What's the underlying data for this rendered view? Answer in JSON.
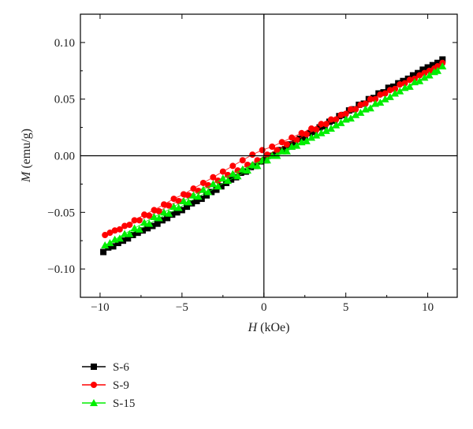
{
  "chart_data": {
    "type": "scatter",
    "title": "",
    "xlabel_var": "H",
    "xlabel_unit": " (kOe)",
    "ylabel_var": "M",
    "ylabel_unit": " (emu/g)",
    "xlim": [
      -11.2,
      11.8
    ],
    "ylim": [
      -0.125,
      0.125
    ],
    "x_ticks": [
      -10,
      -5,
      0,
      5,
      10
    ],
    "x_tick_labels": [
      "−10",
      "−5",
      "0",
      "5",
      "10"
    ],
    "y_ticks": [
      -0.1,
      -0.05,
      0.0,
      0.05,
      0.1
    ],
    "y_tick_labels": [
      "−0.10",
      "−0.05",
      "0.00",
      "0.05",
      "0.10"
    ],
    "grid": false,
    "zero_lines": true,
    "legend_position": "below-left",
    "series": [
      {
        "name": "S-6",
        "color": "#000000",
        "marker": "square",
        "x": [
          -9.8,
          -9.2,
          -8.6,
          -8.0,
          -7.4,
          -6.8,
          -6.2,
          -5.6,
          -5.0,
          -4.4,
          -3.8,
          -3.2,
          -2.6,
          -2.0,
          -1.4,
          -0.8,
          -0.2,
          0.4,
          1.0,
          1.6,
          2.2,
          2.8,
          3.4,
          4.0,
          4.6,
          5.2,
          5.8,
          6.4,
          7.0,
          7.6,
          8.2,
          8.8,
          9.4,
          10.0,
          10.6,
          10.9,
          10.3,
          9.7,
          9.1,
          8.5,
          7.9,
          7.3,
          6.7,
          6.1,
          5.5,
          4.9,
          4.3,
          3.7,
          3.1,
          2.5,
          1.9,
          1.3,
          0.7,
          0.1,
          -0.5,
          -1.1,
          -1.7,
          -2.3,
          -2.9,
          -3.5,
          -4.1,
          -4.7,
          -5.3,
          -5.9,
          -6.5,
          -7.1,
          -7.7,
          -8.3,
          -8.9,
          -9.5
        ],
        "y": [
          -0.085,
          -0.08,
          -0.075,
          -0.07,
          -0.066,
          -0.062,
          -0.057,
          -0.052,
          -0.048,
          -0.042,
          -0.038,
          -0.032,
          -0.027,
          -0.021,
          -0.015,
          -0.01,
          -0.005,
          0.0,
          0.005,
          0.01,
          0.015,
          0.02,
          0.025,
          0.03,
          0.035,
          0.04,
          0.045,
          0.05,
          0.055,
          0.06,
          0.064,
          0.068,
          0.073,
          0.078,
          0.082,
          0.085,
          0.08,
          0.076,
          0.071,
          0.066,
          0.061,
          0.056,
          0.051,
          0.046,
          0.041,
          0.036,
          0.031,
          0.026,
          0.021,
          0.016,
          0.011,
          0.006,
          0.001,
          -0.004,
          -0.009,
          -0.014,
          -0.019,
          -0.024,
          -0.03,
          -0.035,
          -0.04,
          -0.045,
          -0.05,
          -0.055,
          -0.06,
          -0.064,
          -0.068,
          -0.073,
          -0.077,
          -0.081
        ]
      },
      {
        "name": "S-9",
        "color": "#ff0000",
        "marker": "circle",
        "x": [
          -9.7,
          -9.1,
          -8.5,
          -7.9,
          -7.3,
          -6.7,
          -6.1,
          -5.5,
          -4.9,
          -4.3,
          -3.7,
          -3.1,
          -2.5,
          -1.9,
          -1.3,
          -0.7,
          -0.1,
          0.5,
          1.1,
          1.7,
          2.3,
          2.9,
          3.5,
          4.1,
          4.7,
          5.3,
          5.9,
          6.5,
          7.1,
          7.7,
          8.3,
          8.9,
          9.5,
          10.1,
          10.6,
          10.9,
          10.4,
          9.8,
          9.2,
          8.6,
          8.0,
          7.4,
          6.8,
          6.2,
          5.6,
          5.0,
          4.4,
          3.8,
          3.2,
          2.6,
          2.0,
          1.4,
          0.8,
          0.2,
          -0.4,
          -1.0,
          -1.6,
          -2.2,
          -2.8,
          -3.4,
          -4.0,
          -4.6,
          -5.2,
          -5.8,
          -6.4,
          -7.0,
          -7.6,
          -8.2,
          -8.8,
          -9.4
        ],
        "y": [
          -0.07,
          -0.066,
          -0.062,
          -0.057,
          -0.052,
          -0.048,
          -0.043,
          -0.038,
          -0.034,
          -0.029,
          -0.024,
          -0.019,
          -0.014,
          -0.009,
          -0.004,
          0.001,
          0.005,
          0.008,
          0.012,
          0.016,
          0.02,
          0.024,
          0.028,
          0.032,
          0.036,
          0.041,
          0.045,
          0.05,
          0.054,
          0.058,
          0.063,
          0.067,
          0.071,
          0.075,
          0.079,
          0.082,
          0.077,
          0.073,
          0.068,
          0.064,
          0.059,
          0.055,
          0.05,
          0.046,
          0.041,
          0.037,
          0.032,
          0.028,
          0.023,
          0.019,
          0.014,
          0.01,
          0.005,
          0.001,
          -0.004,
          -0.008,
          -0.013,
          -0.017,
          -0.022,
          -0.026,
          -0.031,
          -0.035,
          -0.04,
          -0.044,
          -0.049,
          -0.053,
          -0.057,
          -0.061,
          -0.065,
          -0.068
        ]
      },
      {
        "name": "S-15",
        "color": "#00ee00",
        "marker": "triangle",
        "x": [
          -9.7,
          -9.1,
          -8.5,
          -7.9,
          -7.3,
          -6.7,
          -6.1,
          -5.5,
          -4.9,
          -4.3,
          -3.7,
          -3.1,
          -2.5,
          -1.9,
          -1.3,
          -0.7,
          -0.1,
          0.5,
          1.1,
          1.7,
          2.3,
          2.9,
          3.5,
          4.1,
          4.7,
          5.3,
          5.9,
          6.5,
          7.1,
          7.7,
          8.3,
          8.9,
          9.5,
          10.1,
          10.6,
          10.9,
          10.4,
          9.8,
          9.2,
          8.6,
          8.0,
          7.4,
          6.8,
          6.2,
          5.6,
          5.0,
          4.4,
          3.8,
          3.2,
          2.6,
          2.0,
          1.4,
          0.8,
          0.2,
          -0.4,
          -1.0,
          -1.6,
          -2.2,
          -2.8,
          -3.4,
          -4.0,
          -4.6,
          -5.2,
          -5.8,
          -6.4,
          -7.0,
          -7.6,
          -8.2,
          -8.8,
          -9.4
        ],
        "y": [
          -0.079,
          -0.074,
          -0.069,
          -0.064,
          -0.059,
          -0.054,
          -0.05,
          -0.045,
          -0.04,
          -0.035,
          -0.03,
          -0.025,
          -0.02,
          -0.016,
          -0.012,
          -0.008,
          -0.004,
          0.0,
          0.004,
          0.008,
          0.012,
          0.016,
          0.02,
          0.024,
          0.029,
          0.033,
          0.038,
          0.042,
          0.047,
          0.052,
          0.057,
          0.061,
          0.066,
          0.071,
          0.075,
          0.079,
          0.074,
          0.069,
          0.065,
          0.06,
          0.055,
          0.05,
          0.046,
          0.041,
          0.036,
          0.032,
          0.027,
          0.022,
          0.018,
          0.013,
          0.009,
          0.004,
          0.0,
          -0.004,
          -0.009,
          -0.013,
          -0.018,
          -0.022,
          -0.027,
          -0.032,
          -0.036,
          -0.041,
          -0.046,
          -0.051,
          -0.055,
          -0.06,
          -0.065,
          -0.069,
          -0.073,
          -0.077
        ]
      }
    ]
  }
}
